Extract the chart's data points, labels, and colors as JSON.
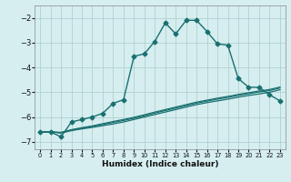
{
  "xlabel": "Humidex (Indice chaleur)",
  "bg_color": "#d6eef0",
  "grid_color": "#aacccc",
  "line_color": "#1a7070",
  "xlim": [
    -0.5,
    23.5
  ],
  "ylim": [
    -7.3,
    -1.5
  ],
  "yticks": [
    -7,
    -6,
    -5,
    -4,
    -3,
    -2
  ],
  "xticks": [
    0,
    1,
    2,
    3,
    4,
    5,
    6,
    7,
    8,
    9,
    10,
    11,
    12,
    13,
    14,
    15,
    16,
    17,
    18,
    19,
    20,
    21,
    22,
    23
  ],
  "series": [
    {
      "x": [
        0,
        1,
        2,
        3,
        4,
        5,
        6,
        7,
        8,
        9,
        10,
        11,
        12,
        13,
        14,
        15,
        16,
        17,
        18,
        19,
        20,
        21,
        22,
        23
      ],
      "y": [
        -6.6,
        -6.6,
        -6.8,
        -6.2,
        -6.1,
        -6.0,
        -5.85,
        -5.45,
        -5.3,
        -3.55,
        -3.45,
        -2.95,
        -2.2,
        -2.65,
        -2.1,
        -2.1,
        -2.55,
        -3.05,
        -3.1,
        -4.45,
        -4.8,
        -4.8,
        -5.1,
        -5.35
      ],
      "marker": "D",
      "markersize": 2.5,
      "linewidth": 1.0,
      "zorder": 4
    },
    {
      "x": [
        0,
        1,
        2,
        3,
        4,
        5,
        6,
        7,
        8,
        9,
        10,
        11,
        12,
        13,
        14,
        15,
        16,
        17,
        18,
        19,
        20,
        21,
        22,
        23
      ],
      "y": [
        -6.6,
        -6.6,
        -6.65,
        -6.55,
        -6.48,
        -6.42,
        -6.35,
        -6.28,
        -6.2,
        -6.1,
        -6.0,
        -5.9,
        -5.8,
        -5.7,
        -5.6,
        -5.5,
        -5.42,
        -5.35,
        -5.28,
        -5.2,
        -5.13,
        -5.07,
        -5.0,
        -4.9
      ],
      "marker": null,
      "linewidth": 0.9,
      "zorder": 2
    },
    {
      "x": [
        0,
        1,
        2,
        3,
        4,
        5,
        6,
        7,
        8,
        9,
        10,
        11,
        12,
        13,
        14,
        15,
        16,
        17,
        18,
        19,
        20,
        21,
        22,
        23
      ],
      "y": [
        -6.6,
        -6.6,
        -6.63,
        -6.53,
        -6.45,
        -6.38,
        -6.3,
        -6.22,
        -6.14,
        -6.05,
        -5.95,
        -5.84,
        -5.74,
        -5.64,
        -5.54,
        -5.44,
        -5.36,
        -5.28,
        -5.21,
        -5.13,
        -5.06,
        -4.99,
        -4.93,
        -4.83
      ],
      "marker": null,
      "linewidth": 0.9,
      "zorder": 2
    },
    {
      "x": [
        0,
        1,
        2,
        3,
        4,
        5,
        6,
        7,
        8,
        9,
        10,
        11,
        12,
        13,
        14,
        15,
        16,
        17,
        18,
        19,
        20,
        21,
        22,
        23
      ],
      "y": [
        -6.6,
        -6.6,
        -6.62,
        -6.51,
        -6.43,
        -6.36,
        -6.27,
        -6.18,
        -6.1,
        -6.01,
        -5.91,
        -5.8,
        -5.7,
        -5.6,
        -5.5,
        -5.4,
        -5.32,
        -5.24,
        -5.17,
        -5.09,
        -5.02,
        -4.95,
        -4.89,
        -4.79
      ],
      "marker": null,
      "linewidth": 0.9,
      "zorder": 2
    }
  ]
}
